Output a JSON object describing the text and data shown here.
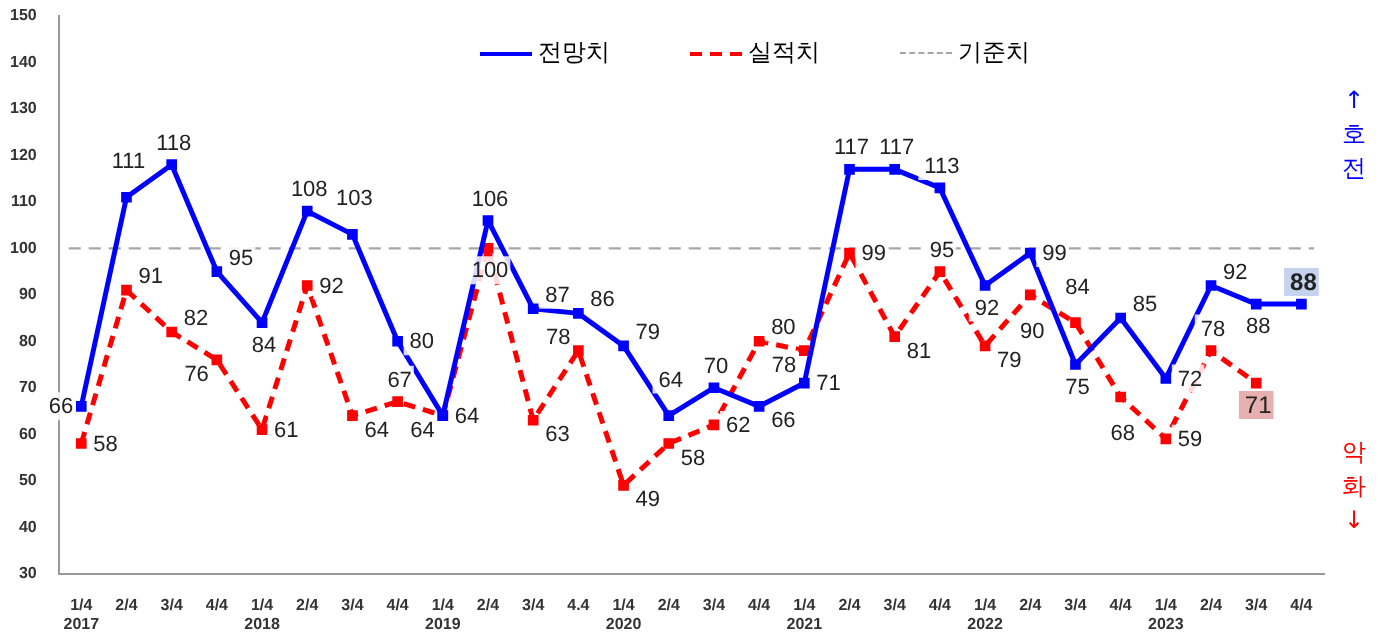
{
  "chart_data": {
    "type": "line",
    "categories": [
      "1/4\n2017",
      "2/4",
      "3/4",
      "4/4",
      "1/4\n2018",
      "2/4",
      "3/4",
      "4/4",
      "1/4\n2019",
      "2/4",
      "3/4",
      "4.4",
      "1/4\n2020",
      "2/4",
      "3/4",
      "4/4",
      "1/4\n2021",
      "2/4",
      "3/4",
      "4/4",
      "1/4\n2022",
      "2/4",
      "3/4",
      "4/4",
      "1/4\n2023",
      "2/4",
      "3/4",
      "4/4"
    ],
    "series": [
      {
        "name": "전망치",
        "color": "#0000ff",
        "line_style": "solid",
        "values": [
          66,
          111,
          118,
          95,
          84,
          108,
          103,
          80,
          64,
          106,
          87,
          86,
          79,
          64,
          70,
          66,
          71,
          117,
          117,
          113,
          92,
          99,
          75,
          85,
          72,
          92,
          88,
          88
        ]
      },
      {
        "name": "실적치",
        "color": "#ff0000",
        "line_style": "dashed",
        "values": [
          58,
          91,
          82,
          76,
          61,
          92,
          64,
          67,
          64,
          100,
          63,
          78,
          49,
          58,
          62,
          80,
          78,
          99,
          81,
          95,
          79,
          90,
          84,
          68,
          59,
          78,
          71,
          null
        ]
      }
    ],
    "ref_lines": [
      {
        "axis": "y",
        "value": 100,
        "label": "기준치",
        "color": "#a6a6a6",
        "line_style": "dashed"
      }
    ],
    "annotations": [
      "↑호전",
      "악화↓"
    ],
    "ylim": [
      30,
      150
    ],
    "yticks": [
      30,
      40,
      50,
      60,
      70,
      80,
      90,
      100,
      110,
      120,
      130,
      140,
      150
    ],
    "marker": "square",
    "data_labels": true,
    "grid": false,
    "legend": "top"
  }
}
